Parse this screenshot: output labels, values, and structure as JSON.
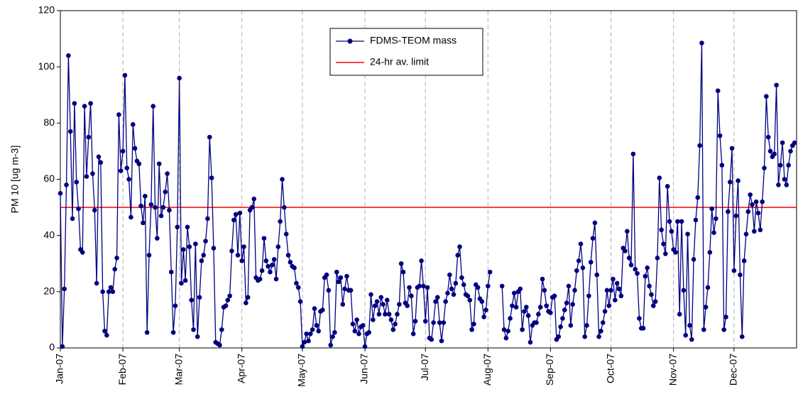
{
  "chart_data": {
    "type": "line",
    "ylabel": "PM 10 [ug m-3]",
    "xlim": [
      0,
      365
    ],
    "ylim": [
      0,
      120
    ],
    "yticks": [
      0,
      20,
      40,
      60,
      80,
      100,
      120
    ],
    "xticks": [
      {
        "value": 0,
        "label": "Jan-07"
      },
      {
        "value": 31,
        "label": "Feb-07"
      },
      {
        "value": 59,
        "label": "Mar-07"
      },
      {
        "value": 90,
        "label": "Apr-07"
      },
      {
        "value": 120,
        "label": "May-07"
      },
      {
        "value": 151,
        "label": "Jun-07"
      },
      {
        "value": 181,
        "label": "Jul-07"
      },
      {
        "value": 212,
        "label": "Aug-07"
      },
      {
        "value": 243,
        "label": "Sep-07"
      },
      {
        "value": 273,
        "label": "Oct-07"
      },
      {
        "value": 304,
        "label": "Nov-07"
      },
      {
        "value": 334,
        "label": "Dec-07"
      }
    ],
    "grid": "x",
    "series": [
      {
        "name": "FDMS-TEOM mass",
        "color": "#000080",
        "values": [
          55,
          0.5,
          21,
          58,
          104,
          77,
          46,
          87,
          59,
          49.5,
          35,
          34,
          86,
          61,
          75,
          87,
          62,
          49,
          23,
          68,
          66,
          20,
          6,
          4.5,
          20,
          21.5,
          20,
          28,
          32,
          83,
          63,
          70,
          97,
          64,
          60,
          46.5,
          79.5,
          71,
          66.5,
          65.5,
          50.5,
          44.5,
          54,
          5.5,
          33,
          51,
          86,
          50,
          39,
          65.5,
          47,
          50,
          55.5,
          62,
          49,
          27,
          5.5,
          15,
          43,
          96,
          23,
          35,
          24,
          43,
          36,
          17,
          6.5,
          37,
          4,
          18,
          31,
          33,
          38,
          46,
          75,
          60.5,
          35.5,
          2,
          1.5,
          1,
          6.5,
          14.5,
          15,
          17,
          18.5,
          34.5,
          45.5,
          47.5,
          33,
          48,
          31,
          36,
          16,
          18,
          49,
          50,
          53,
          25,
          24,
          24.5,
          27.5,
          39,
          31,
          29,
          27,
          29.5,
          31.5,
          24.5,
          36,
          45,
          60,
          50,
          40.5,
          33,
          30.5,
          29,
          28.5,
          23,
          21.5,
          16.5,
          0.5,
          2,
          5,
          2.5,
          5,
          6.5,
          14,
          8,
          6,
          13,
          13.5,
          25,
          26,
          20.5,
          1,
          4,
          5.5,
          27,
          23.5,
          25,
          15.5,
          21,
          25.5,
          20.5,
          20.5,
          8.5,
          6,
          10,
          5,
          7.5,
          8,
          0.5,
          5,
          5.5,
          19,
          10,
          15,
          16.5,
          12,
          18,
          15.5,
          12,
          17,
          12,
          10,
          6.5,
          8.5,
          12,
          15.5,
          30,
          27,
          16,
          15,
          21.5,
          18.5,
          5,
          9.5,
          21.5,
          22,
          31,
          22,
          9.5,
          21.5,
          3.5,
          3,
          9,
          16.5,
          18,
          9,
          2.5,
          9,
          16.5,
          19.5,
          26,
          21,
          19,
          23,
          33,
          36,
          25,
          22.5,
          19,
          18.5,
          17,
          6.5,
          8.5,
          22.5,
          21.5,
          17.5,
          16.5,
          11,
          13.5,
          22,
          27,
          null,
          null,
          null,
          null,
          null,
          22,
          6.5,
          3.5,
          6,
          10.5,
          15,
          19.5,
          14.5,
          20,
          21,
          6.5,
          13,
          14.5,
          11.5,
          2,
          8,
          9,
          9,
          12,
          14.5,
          24.5,
          20.5,
          15,
          13,
          12.5,
          18,
          18.5,
          3,
          4,
          7.5,
          10.5,
          13.5,
          16,
          22,
          8,
          15.5,
          20.5,
          27.5,
          31,
          37,
          28.5,
          4,
          8,
          18.5,
          30.5,
          39,
          44.5,
          26,
          4,
          6,
          9,
          13,
          20.5,
          15,
          20.5,
          24.5,
          17,
          23,
          21,
          18.5,
          35.5,
          34.5,
          41.5,
          32,
          29.5,
          69,
          28,
          26.5,
          10.5,
          7,
          7,
          25.5,
          28.5,
          22,
          19,
          15,
          16.5,
          32,
          60.5,
          42,
          37,
          33.5,
          57.5,
          45,
          41.5,
          35,
          34,
          45,
          12,
          45,
          20.5,
          4.5,
          40.5,
          8,
          3,
          31.5,
          45.5,
          53.5,
          72,
          108.5,
          6.5,
          14.5,
          21.5,
          34,
          49.5,
          41,
          46,
          91.5,
          75.5,
          65,
          6.5,
          11,
          48.5,
          59,
          71,
          27.5,
          47,
          59.5,
          26,
          4,
          31,
          40.5,
          48.5,
          54.5,
          51,
          41.5,
          52,
          48,
          42,
          52,
          64,
          89.5,
          75,
          70,
          68,
          69,
          93.5,
          58,
          65,
          73,
          60,
          58,
          65,
          70,
          72,
          73
        ]
      }
    ],
    "reference_line": {
      "name": "24-hr av. limit",
      "value": 50,
      "color": "#ff0000"
    }
  }
}
